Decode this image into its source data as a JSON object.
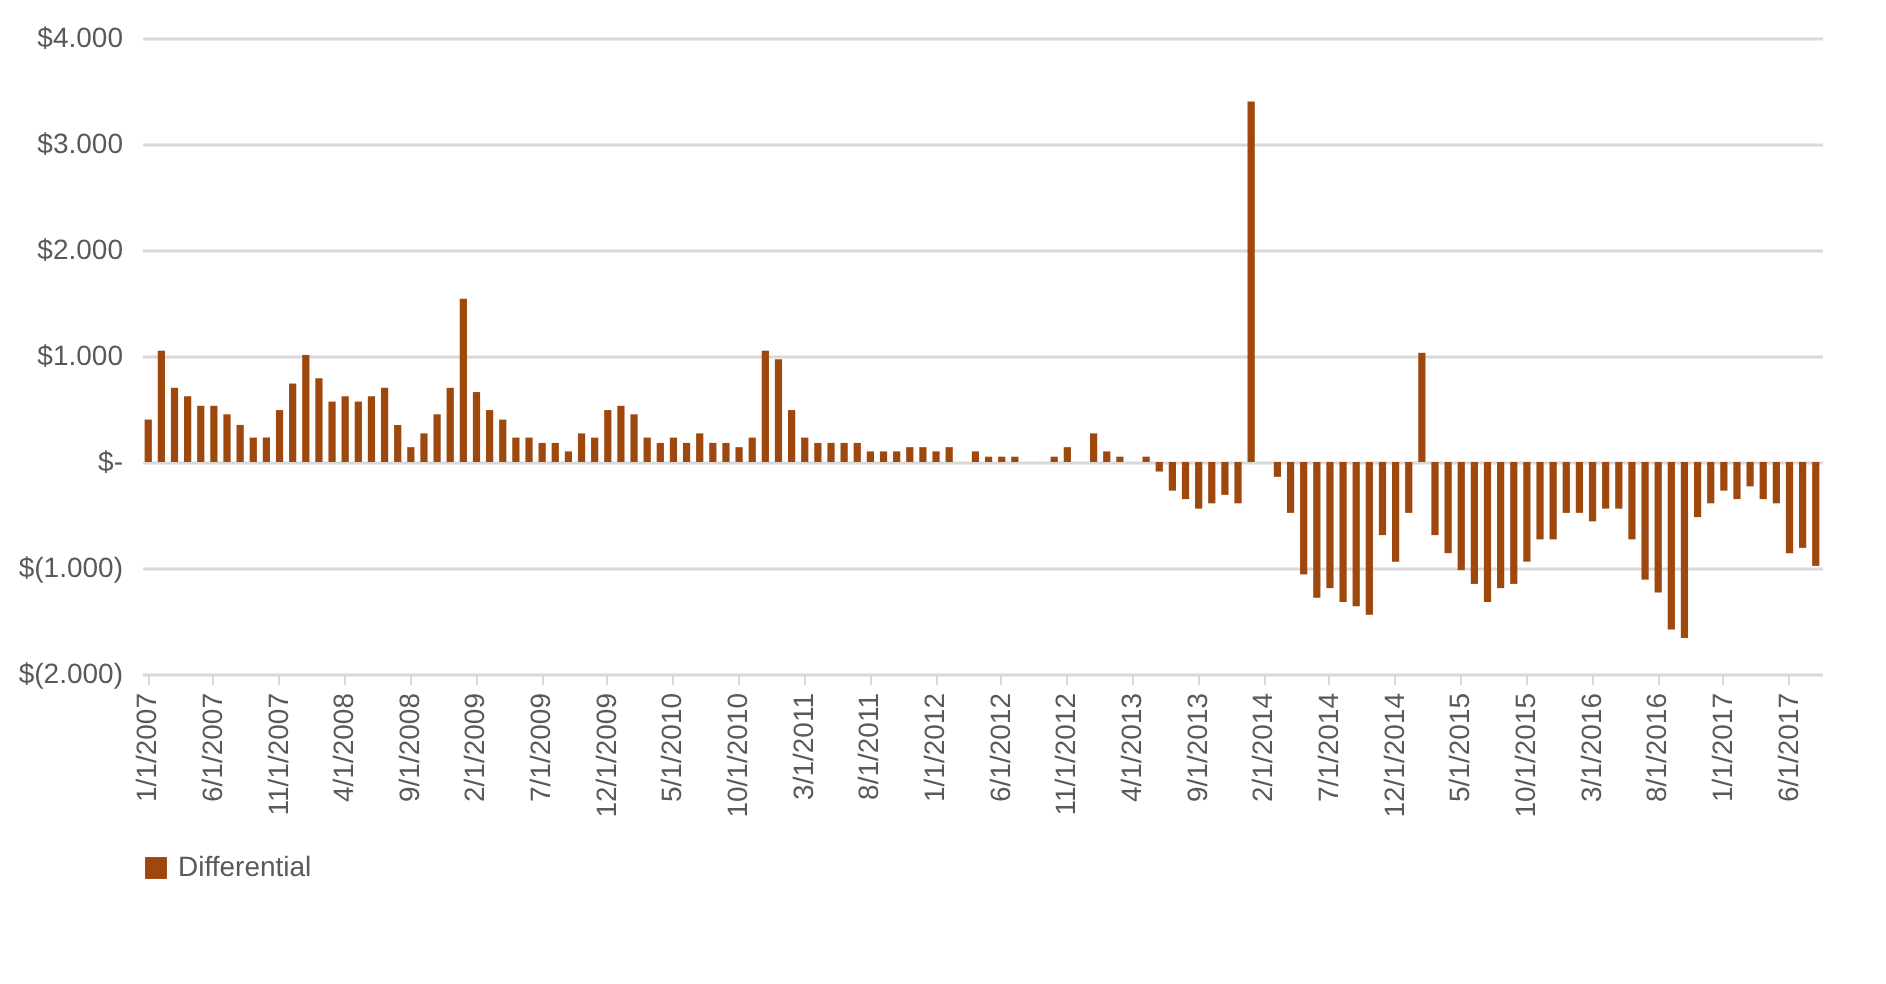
{
  "chart_data": {
    "type": "bar",
    "categories": [
      "1/1/2007",
      null,
      null,
      null,
      null,
      "6/1/2007",
      null,
      null,
      null,
      null,
      "11/1/2007",
      null,
      null,
      null,
      null,
      "4/1/2008",
      null,
      null,
      null,
      null,
      "9/1/2008",
      null,
      null,
      null,
      null,
      "2/1/2009",
      null,
      null,
      null,
      null,
      "7/1/2009",
      null,
      null,
      null,
      null,
      "12/1/2009",
      null,
      null,
      null,
      null,
      "5/1/2010",
      null,
      null,
      null,
      null,
      "10/1/2010",
      null,
      null,
      null,
      null,
      "3/1/2011",
      null,
      null,
      null,
      null,
      "8/1/2011",
      null,
      null,
      null,
      null,
      "1/1/2012",
      null,
      null,
      null,
      null,
      "6/1/2012",
      null,
      null,
      null,
      null,
      "11/1/2012",
      null,
      null,
      null,
      null,
      "4/1/2013",
      null,
      null,
      null,
      null,
      "9/1/2013",
      null,
      null,
      null,
      null,
      "2/1/2014",
      null,
      null,
      null,
      null,
      "7/1/2014",
      null,
      null,
      null,
      null,
      "12/1/2014",
      null,
      null,
      null,
      null,
      "5/1/2015",
      null,
      null,
      null,
      null,
      "10/1/2015",
      null,
      null,
      null,
      null,
      "3/1/2016",
      null,
      null,
      null,
      null,
      "8/1/2016",
      null,
      null,
      null,
      null,
      "1/1/2017",
      null,
      null,
      null,
      null,
      "6/1/2017",
      null,
      null
    ],
    "series": [
      {
        "name": "Differential",
        "color": "#9e480e",
        "values": [
          0.4,
          1.05,
          0.7,
          0.62,
          0.53,
          0.53,
          0.45,
          0.35,
          0.23,
          0.23,
          0.49,
          0.74,
          1.01,
          0.79,
          0.57,
          0.62,
          0.57,
          0.62,
          0.7,
          0.35,
          0.14,
          0.27,
          0.45,
          0.7,
          1.54,
          0.66,
          0.49,
          0.4,
          0.23,
          0.23,
          0.18,
          0.18,
          0.1,
          0.27,
          0.23,
          0.49,
          0.53,
          0.45,
          0.23,
          0.18,
          0.23,
          0.18,
          0.27,
          0.18,
          0.18,
          0.14,
          0.23,
          1.05,
          0.97,
          0.49,
          0.23,
          0.18,
          0.18,
          0.18,
          0.18,
          0.1,
          0.1,
          0.1,
          0.14,
          0.14,
          0.1,
          0.14,
          0,
          0.1,
          0.05,
          0.05,
          0.05,
          0,
          0,
          0.05,
          0.14,
          0,
          0.27,
          0.1,
          0.05,
          0,
          0.05,
          -0.09,
          -0.27,
          -0.35,
          -0.44,
          -0.39,
          -0.31,
          -0.39,
          3.4,
          0,
          -0.14,
          -0.48,
          -1.06,
          -1.28,
          -1.19,
          -1.32,
          -1.36,
          -1.44,
          -0.69,
          -0.94,
          -0.48,
          1.03,
          -0.69,
          -0.86,
          -1.02,
          -1.15,
          -1.32,
          -1.19,
          -1.15,
          -0.94,
          -0.73,
          -0.73,
          -0.48,
          -0.48,
          -0.56,
          -0.44,
          -0.44,
          -0.73,
          -1.11,
          -1.23,
          -1.58,
          -1.66,
          -0.52,
          -0.39,
          -0.27,
          -0.35,
          -0.23,
          -0.35,
          -0.39,
          -0.86,
          -0.81,
          -0.98
        ]
      }
    ],
    "ylim": [
      -2,
      4
    ],
    "yticks": [
      {
        "value": -2,
        "label": "$(2.000)"
      },
      {
        "value": -1,
        "label": "$(1.000)"
      },
      {
        "value": 0,
        "label": "$-"
      },
      {
        "value": 1,
        "label": "$1.000"
      },
      {
        "value": 2,
        "label": "$2.000"
      },
      {
        "value": 3,
        "label": "$3.000"
      },
      {
        "value": 4,
        "label": "$4.000"
      }
    ],
    "grid": "y",
    "legend": "bottom"
  }
}
